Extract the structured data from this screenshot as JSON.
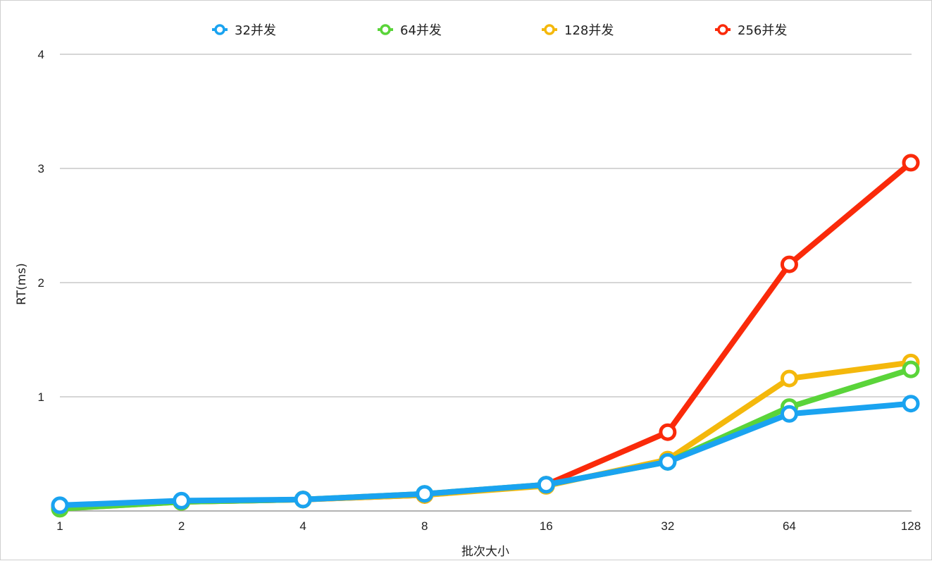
{
  "chart_data": {
    "type": "line",
    "categories": [
      "1",
      "2",
      "4",
      "8",
      "16",
      "32",
      "64",
      "128"
    ],
    "series": [
      {
        "name": "32并发",
        "color": "#1aa3f0",
        "values": [
          0.05,
          0.09,
          0.1,
          0.15,
          0.23,
          0.43,
          0.85,
          0.94
        ]
      },
      {
        "name": "64并发",
        "color": "#5ad43a",
        "values": [
          0.02,
          0.08,
          0.1,
          0.15,
          0.23,
          0.43,
          0.91,
          1.24
        ]
      },
      {
        "name": "128并发",
        "color": "#f4b80c",
        "values": [
          0.02,
          0.08,
          0.1,
          0.14,
          0.22,
          0.45,
          1.16,
          1.3
        ]
      },
      {
        "name": "256并发",
        "color": "#fa2a0a",
        "values": [
          0.03,
          0.08,
          0.1,
          0.14,
          0.23,
          0.69,
          2.16,
          3.05
        ]
      }
    ],
    "xlabel": "批次大小",
    "ylabel": "RT(ms)",
    "ylim": [
      0,
      4
    ],
    "yticks": [
      1,
      2,
      3,
      4
    ],
    "grid": true,
    "legend_position": "top"
  }
}
